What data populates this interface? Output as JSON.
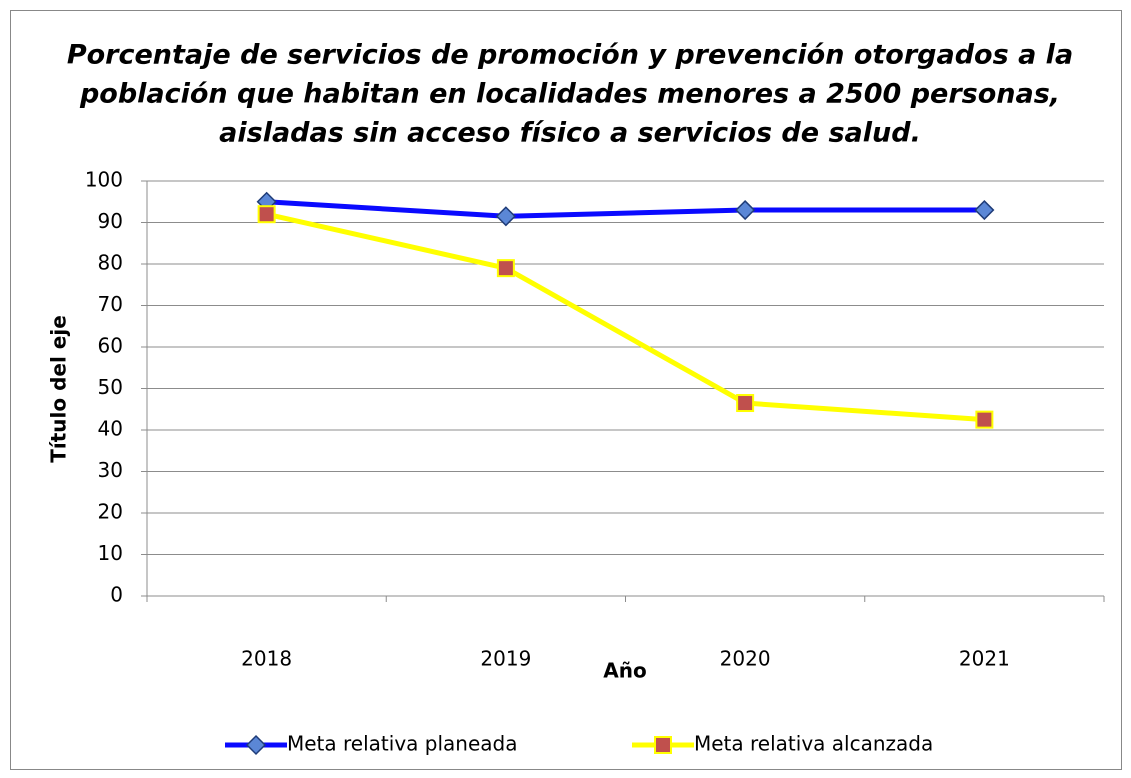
{
  "chart_data": {
    "type": "line",
    "title": [
      "Porcentaje de servicios de promoción y prevención otorgados a la",
      "población que habitan en localidades menores a 2500 personas,",
      "aisladas sin acceso físico a servicios de salud."
    ],
    "x_label": "Año",
    "y_label": "Título del eje",
    "categories": [
      "2018",
      "2019",
      "2020",
      "2021"
    ],
    "series": [
      {
        "name": "Meta relativa planeada",
        "color": "#0a0aff",
        "marker": "diamond",
        "marker_color": "#5b87d6",
        "values": [
          95,
          91.5,
          93,
          93
        ]
      },
      {
        "name": "Meta relativa alcanzada",
        "color": "#ffff00",
        "marker": "square",
        "marker_color": "#c0504d",
        "values": [
          92,
          79,
          46.5,
          42.5
        ]
      }
    ],
    "ylim": [
      0,
      100
    ],
    "yticks": [
      0,
      10,
      20,
      30,
      40,
      50,
      60,
      70,
      80,
      90,
      100
    ],
    "grid": true,
    "legend": "bottom"
  }
}
